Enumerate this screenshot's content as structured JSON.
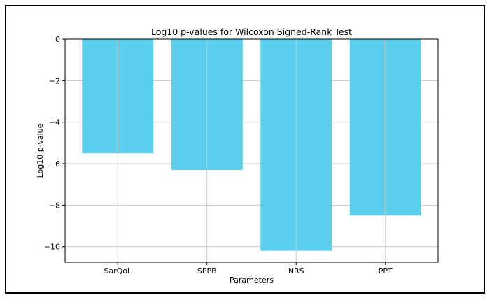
{
  "chart_data": {
    "type": "bar",
    "title": "Log10 p-values for Wilcoxon Signed-Rank Test",
    "xlabel": "Parameters",
    "ylabel": "Log10 p-value",
    "categories": [
      "SarQoL",
      "SPPB",
      "NRS",
      "PPT"
    ],
    "values": [
      -5.5,
      -6.3,
      -10.2,
      -8.5
    ],
    "ylim": [
      -10.75,
      0
    ],
    "yticks": [
      0,
      -2,
      -4,
      -6,
      -8,
      -10
    ],
    "ytick_labels": [
      "0",
      "−2",
      "−4",
      "−6",
      "−8",
      "−10"
    ],
    "grid": true,
    "bar_color": "#5bcfed",
    "grid_color": "#c8c8c8"
  }
}
